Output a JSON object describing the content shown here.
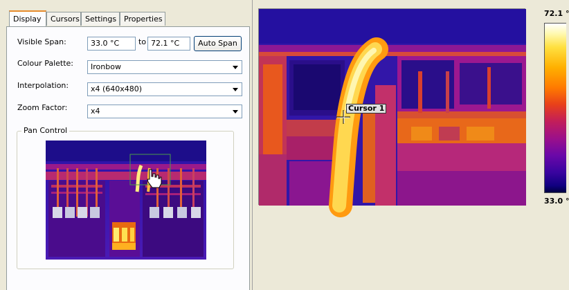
{
  "tabs": [
    {
      "label": "Display",
      "active": true
    },
    {
      "label": "Cursors",
      "active": false
    },
    {
      "label": "Settings",
      "active": false
    },
    {
      "label": "Properties",
      "active": false
    }
  ],
  "display": {
    "visible_span_label": "Visible Span:",
    "span_min": "33.0 °C",
    "span_to": "to",
    "span_max": "72.1 °C",
    "auto_span_button": "Auto Span",
    "colour_palette_label": "Colour Palette:",
    "colour_palette_value": "Ironbow",
    "interpolation_label": "Interpolation:",
    "interpolation_value": "x4 (640x480)",
    "zoom_factor_label": "Zoom Factor:",
    "zoom_factor_value": "x4",
    "pan_control_label": "Pan Control"
  },
  "image": {
    "cursor_label": "Cursor 1"
  },
  "scale": {
    "max_label": "72.1 °",
    "min_label": "33.0 °"
  },
  "colors": {
    "tab_accent": "#e68b2c",
    "panel_bg": "#fcfcfe",
    "window_bg": "#ece9d8"
  }
}
